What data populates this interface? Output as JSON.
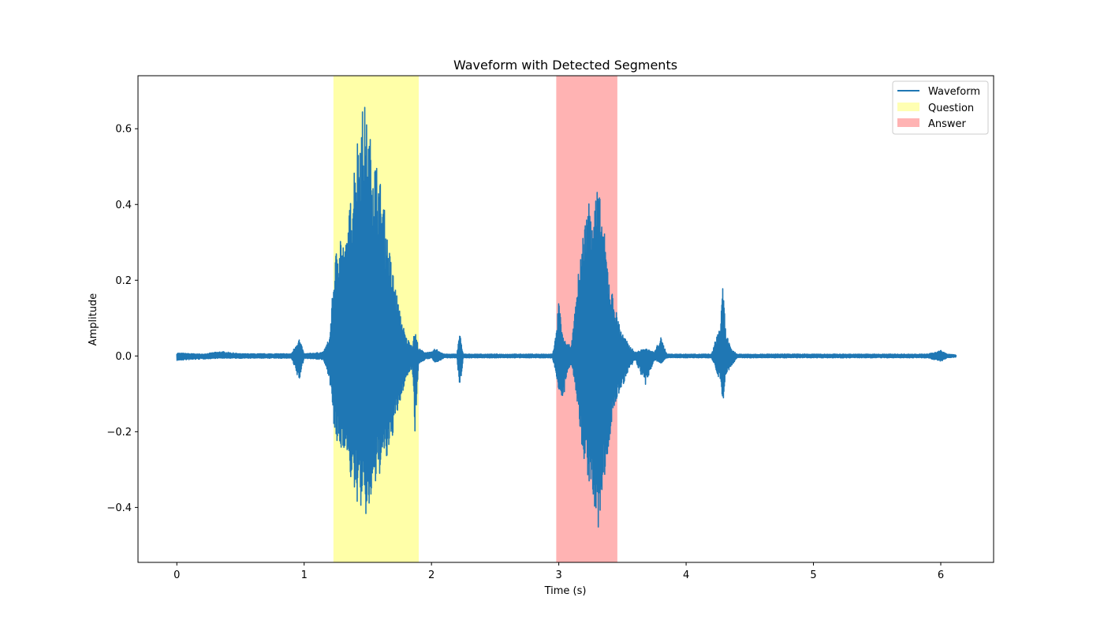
{
  "chart_data": {
    "type": "line",
    "title": "Waveform with Detected Segments",
    "xlabel": "Time (s)",
    "ylabel": "Amplitude",
    "xlim": [
      -0.305,
      6.415
    ],
    "ylim": [
      -0.545,
      0.74
    ],
    "x_ticks": [
      0,
      1,
      2,
      3,
      4,
      5,
      6
    ],
    "x_tick_labels": [
      "0",
      "1",
      "2",
      "3",
      "4",
      "5",
      "6"
    ],
    "y_ticks": [
      -0.4,
      -0.2,
      0.0,
      0.2,
      0.4,
      0.6
    ],
    "y_tick_labels": [
      "−0.4",
      "−0.2",
      "0.0",
      "0.2",
      "0.4",
      "0.6"
    ],
    "grid": false,
    "legend_position": "top-right",
    "legend": [
      "Waveform",
      "Question",
      "Answer"
    ],
    "colors": {
      "waveform": "#1f77b4",
      "question": "#ffff99",
      "answer": "#ff9999"
    },
    "regions": [
      {
        "name": "Question",
        "x_start": 1.23,
        "x_end": 1.9
      },
      {
        "name": "Answer",
        "x_start": 2.98,
        "x_end": 3.46
      }
    ],
    "series": [
      {
        "name": "Waveform",
        "duration": 6.12,
        "envelope": [
          [
            0.0,
            0.008,
            -0.012
          ],
          [
            0.2,
            0.005,
            -0.008
          ],
          [
            0.35,
            0.012,
            -0.006
          ],
          [
            0.5,
            0.006,
            -0.006
          ],
          [
            0.9,
            0.006,
            -0.006
          ],
          [
            0.96,
            0.048,
            -0.068
          ],
          [
            1.0,
            0.006,
            -0.006
          ],
          [
            1.15,
            0.01,
            -0.01
          ],
          [
            1.2,
            0.05,
            -0.06
          ],
          [
            1.24,
            0.25,
            -0.22
          ],
          [
            1.28,
            0.35,
            -0.26
          ],
          [
            1.32,
            0.28,
            -0.24
          ],
          [
            1.36,
            0.4,
            -0.32
          ],
          [
            1.4,
            0.55,
            -0.38
          ],
          [
            1.44,
            0.63,
            -0.4
          ],
          [
            1.47,
            0.68,
            -0.42
          ],
          [
            1.5,
            0.6,
            -0.44
          ],
          [
            1.53,
            0.57,
            -0.38
          ],
          [
            1.58,
            0.5,
            -0.33
          ],
          [
            1.62,
            0.42,
            -0.28
          ],
          [
            1.66,
            0.3,
            -0.28
          ],
          [
            1.7,
            0.22,
            -0.2
          ],
          [
            1.75,
            0.12,
            -0.13
          ],
          [
            1.8,
            0.05,
            -0.06
          ],
          [
            1.85,
            0.03,
            -0.03
          ],
          [
            1.87,
            0.07,
            -0.2
          ],
          [
            1.9,
            0.02,
            -0.02
          ],
          [
            1.95,
            0.01,
            -0.01
          ],
          [
            2.0,
            0.01,
            -0.005
          ],
          [
            2.03,
            0.02,
            -0.02
          ],
          [
            2.1,
            0.005,
            -0.005
          ],
          [
            2.2,
            0.005,
            -0.005
          ],
          [
            2.22,
            0.065,
            -0.095
          ],
          [
            2.25,
            0.005,
            -0.005
          ],
          [
            2.95,
            0.005,
            -0.005
          ],
          [
            2.98,
            0.06,
            -0.05
          ],
          [
            3.0,
            0.15,
            -0.09
          ],
          [
            3.03,
            0.05,
            -0.13
          ],
          [
            3.07,
            0.03,
            -0.04
          ],
          [
            3.1,
            0.03,
            -0.02
          ],
          [
            3.13,
            0.13,
            -0.08
          ],
          [
            3.17,
            0.28,
            -0.22
          ],
          [
            3.21,
            0.37,
            -0.3
          ],
          [
            3.25,
            0.45,
            -0.35
          ],
          [
            3.28,
            0.43,
            -0.42
          ],
          [
            3.31,
            0.45,
            -0.47
          ],
          [
            3.35,
            0.35,
            -0.35
          ],
          [
            3.4,
            0.2,
            -0.22
          ],
          [
            3.45,
            0.12,
            -0.12
          ],
          [
            3.5,
            0.06,
            -0.08
          ],
          [
            3.55,
            0.03,
            -0.04
          ],
          [
            3.6,
            0.01,
            -0.01
          ],
          [
            3.68,
            0.02,
            -0.08
          ],
          [
            3.75,
            0.01,
            -0.01
          ],
          [
            3.8,
            0.05,
            -0.02
          ],
          [
            3.85,
            0.005,
            -0.005
          ],
          [
            4.2,
            0.005,
            -0.005
          ],
          [
            4.27,
            0.09,
            -0.07
          ],
          [
            4.29,
            0.19,
            -0.14
          ],
          [
            4.31,
            0.07,
            -0.05
          ],
          [
            4.35,
            0.02,
            -0.03
          ],
          [
            4.4,
            0.005,
            -0.005
          ],
          [
            5.9,
            0.005,
            -0.005
          ],
          [
            6.0,
            0.015,
            -0.015
          ],
          [
            6.05,
            0.005,
            -0.005
          ],
          [
            6.12,
            0.003,
            -0.003
          ]
        ]
      }
    ]
  }
}
